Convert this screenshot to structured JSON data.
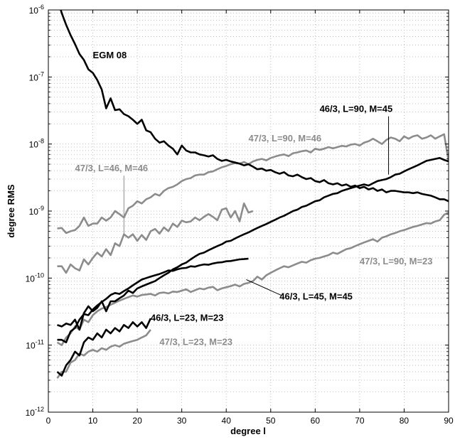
{
  "chart_data": {
    "type": "line",
    "xlabel": "degree l",
    "ylabel": "degree RMS",
    "xlim": [
      0,
      90
    ],
    "ylim": [
      1e-12,
      1e-06
    ],
    "yscale": "log",
    "grid": true,
    "x_ticks": [
      0,
      10,
      20,
      30,
      40,
      50,
      60,
      70,
      80,
      90
    ],
    "x_tick_labels": [
      "0",
      "10",
      "20",
      "30",
      "40",
      "50",
      "60",
      "70",
      "80",
      "90"
    ],
    "y_tick_exponents": [
      -12,
      -11,
      -10,
      -9,
      -8,
      -7,
      -6
    ],
    "y_tick_base": "10",
    "colors": {
      "black_series": "#000000",
      "gray_series": "#8c8c8c",
      "grid": "#b4b4b4"
    },
    "series": [
      {
        "name": "EGM 08",
        "color": "#000000",
        "x": [
          2,
          3,
          4,
          5,
          6,
          7,
          8,
          9,
          10,
          11,
          12,
          13,
          14,
          15,
          16,
          17,
          18,
          19,
          20,
          21,
          22,
          23,
          24,
          25,
          26,
          27,
          28,
          29,
          30,
          31,
          32,
          33,
          34,
          35,
          36,
          37,
          38,
          39,
          40,
          41,
          42,
          43,
          44,
          45,
          46,
          47,
          48,
          49,
          50,
          51,
          52,
          53,
          54,
          55,
          56,
          57,
          58,
          59,
          60,
          61,
          62,
          63,
          64,
          65,
          66,
          67,
          68,
          69,
          70,
          71,
          72,
          73,
          74,
          75,
          76,
          77,
          78,
          79,
          80,
          81,
          82,
          83,
          84,
          85,
          86,
          87,
          88,
          89,
          90
        ],
        "y": [
          1.5e-06,
          9e-07,
          6e-07,
          4.2e-07,
          3.1e-07,
          2.2e-07,
          1.8e-07,
          1.3e-07,
          1.15e-07,
          9e-08,
          6.5e-08,
          3.4e-08,
          4.8e-08,
          3.2e-08,
          3.3e-08,
          2.8e-08,
          2.6e-08,
          2.3e-08,
          2e-08,
          2.3e-08,
          1.6e-08,
          1.5e-08,
          1.2e-08,
          1.05e-08,
          1.1e-08,
          9.5e-09,
          8.5e-09,
          7e-09,
          9.5e-09,
          8e-09,
          7.5e-09,
          7.5e-09,
          7e-09,
          6.8e-09,
          6.5e-09,
          6.8e-09,
          6e-09,
          5.6e-09,
          5.8e-09,
          5.5e-09,
          5.3e-09,
          5.1e-09,
          4.8e-09,
          5e-09,
          4.6e-09,
          4.2e-09,
          4.3e-09,
          4e-09,
          4.1e-09,
          3.8e-09,
          3.6e-09,
          3.8e-09,
          3.4e-09,
          3.3e-09,
          3.5e-09,
          3.2e-09,
          3e-09,
          3.1e-09,
          2.8e-09,
          2.7e-09,
          2.9e-09,
          2.6e-09,
          2.5e-09,
          2.6e-09,
          2.4e-09,
          2.5e-09,
          2.3e-09,
          2.4e-09,
          2.2e-09,
          2.3e-09,
          2.1e-09,
          2.2e-09,
          2e-09,
          2.1e-09,
          1.9e-09,
          2e-09,
          2e-09,
          1.95e-09,
          1.9e-09,
          1.9e-09,
          1.85e-09,
          1.9e-09,
          1.8e-09,
          1.75e-09,
          1.7e-09,
          1.6e-09,
          1.5e-09,
          1.5e-09,
          1.4e-09
        ]
      },
      {
        "name": "46/3, L=90, M=45",
        "color": "#000000",
        "x": [
          2,
          3,
          4,
          5,
          6,
          7,
          8,
          9,
          10,
          11,
          12,
          13,
          14,
          15,
          16,
          17,
          18,
          19,
          20,
          21,
          22,
          23,
          24,
          25,
          26,
          27,
          28,
          29,
          30,
          31,
          32,
          33,
          34,
          35,
          36,
          37,
          38,
          39,
          40,
          41,
          42,
          43,
          44,
          45,
          46,
          47,
          48,
          49,
          50,
          51,
          52,
          53,
          54,
          55,
          56,
          57,
          58,
          59,
          60,
          61,
          62,
          63,
          64,
          65,
          66,
          67,
          68,
          69,
          70,
          71,
          72,
          73,
          74,
          75,
          76,
          77,
          78,
          79,
          80,
          81,
          82,
          83,
          84,
          85,
          86,
          87,
          88,
          89,
          90
        ],
        "y": [
          2e-11,
          1.9e-11,
          2.1e-11,
          2e-11,
          2.4e-11,
          1.7e-11,
          3e-11,
          3.8e-11,
          3.2e-11,
          3.6e-11,
          4.5e-11,
          3.2e-11,
          4.5e-11,
          4.5e-11,
          5e-11,
          5.5e-11,
          6.5e-11,
          6e-11,
          7e-11,
          7.5e-11,
          8e-11,
          8.5e-11,
          9e-11,
          1e-10,
          1.1e-10,
          1.2e-10,
          1.35e-10,
          1.45e-10,
          1.6e-10,
          1.7e-10,
          1.9e-10,
          2.1e-10,
          2.3e-10,
          2.4e-10,
          2.6e-10,
          2.8e-10,
          3e-10,
          3.2e-10,
          3.5e-10,
          3.6e-10,
          3.9e-10,
          4.2e-10,
          4.5e-10,
          4.8e-10,
          5.2e-10,
          5.6e-10,
          6e-10,
          6.4e-10,
          6.9e-10,
          7.4e-10,
          8e-10,
          8.5e-10,
          9.2e-10,
          1e-09,
          1.05e-09,
          1.15e-09,
          1.2e-09,
          1.3e-09,
          1.4e-09,
          1.45e-09,
          1.6e-09,
          1.7e-09,
          1.8e-09,
          1.85e-09,
          2e-09,
          2.1e-09,
          2.2e-09,
          2.3e-09,
          2.4e-09,
          2.5e-09,
          2.4e-09,
          2.6e-09,
          2.8e-09,
          2.9e-09,
          3e-09,
          3.2e-09,
          3.5e-09,
          3.6e-09,
          3.9e-09,
          4.2e-09,
          4.5e-09,
          4.8e-09,
          5.2e-09,
          5.6e-09,
          5.8e-09,
          6e-09,
          6.2e-09,
          5.8e-09,
          5.5e-09
        ]
      },
      {
        "name": "47/3, L=90, M=46",
        "color": "#8c8c8c",
        "x": [
          2,
          3,
          4,
          5,
          6,
          7,
          8,
          9,
          10,
          11,
          12,
          13,
          14,
          15,
          16,
          17,
          18,
          19,
          20,
          21,
          22,
          23,
          24,
          25,
          26,
          27,
          28,
          29,
          30,
          31,
          32,
          33,
          34,
          35,
          36,
          37,
          38,
          39,
          40,
          41,
          42,
          43,
          44,
          45,
          46,
          47,
          48,
          49,
          50,
          51,
          52,
          53,
          54,
          55,
          56,
          57,
          58,
          59,
          60,
          61,
          62,
          63,
          64,
          65,
          66,
          67,
          68,
          69,
          70,
          71,
          72,
          73,
          74,
          75,
          76,
          77,
          78,
          79,
          80,
          81,
          82,
          83,
          84,
          85,
          86,
          87,
          88,
          89,
          90
        ],
        "y": [
          5.5e-10,
          5.6e-10,
          4.7e-10,
          5e-10,
          5.2e-10,
          6e-10,
          8e-10,
          6e-10,
          6.5e-10,
          6.5e-10,
          8e-10,
          7.2e-10,
          8e-10,
          1e-09,
          9e-10,
          8e-10,
          1.1e-09,
          1.2e-09,
          1.4e-09,
          1.3e-09,
          1.5e-09,
          1.6e-09,
          1.8e-09,
          1.7e-09,
          2e-09,
          2.2e-09,
          2.3e-09,
          2.5e-09,
          2.8e-09,
          3e-09,
          3.1e-09,
          3.4e-09,
          3.5e-09,
          3.5e-09,
          3.8e-09,
          3.9e-09,
          4.2e-09,
          4.5e-09,
          4.7e-09,
          5e-09,
          5.2e-09,
          5.1e-09,
          5.4e-09,
          5e-09,
          5.5e-09,
          5.8e-09,
          6e-09,
          5.7e-09,
          6.2e-09,
          6.5e-09,
          6.8e-09,
          7e-09,
          6.6e-09,
          7.3e-09,
          7.5e-09,
          7.8e-09,
          8e-09,
          7.5e-09,
          8.5e-09,
          8.2e-09,
          8.5e-09,
          9e-09,
          8.6e-09,
          9e-09,
          9.4e-09,
          9.2e-09,
          9.8e-09,
          1e-08,
          9.5e-09,
          1.05e-08,
          1.1e-08,
          1.2e-08,
          1.1e-08,
          1e-08,
          1.15e-08,
          1.25e-08,
          1.2e-08,
          1.1e-08,
          1.3e-08,
          1.2e-08,
          1.3e-08,
          1.35e-08,
          1.2e-08,
          1.25e-08,
          1.35e-08,
          1.2e-08,
          1.3e-08,
          1.4e-08,
          5.5e-09
        ]
      },
      {
        "name": "47/3, L=46, M=46",
        "color": "#8c8c8c",
        "x": [
          2,
          3,
          4,
          5,
          6,
          7,
          8,
          9,
          10,
          11,
          12,
          13,
          14,
          15,
          16,
          17,
          18,
          19,
          20,
          21,
          22,
          23,
          24,
          25,
          26,
          27,
          28,
          29,
          30,
          31,
          32,
          33,
          34,
          35,
          36,
          37,
          38,
          39,
          40,
          41,
          42,
          43,
          44,
          45,
          46
        ],
        "y": [
          1.5e-10,
          1.5e-10,
          1.2e-10,
          1.6e-10,
          1.4e-10,
          1.3e-10,
          1.9e-10,
          1.6e-10,
          2e-10,
          2.4e-10,
          2.1e-10,
          2.7e-10,
          2.2e-10,
          3.3e-10,
          3e-10,
          4.5e-10,
          4e-10,
          4.5e-10,
          3.6e-10,
          4.4e-10,
          3.7e-10,
          5e-10,
          5.4e-10,
          4.6e-10,
          5.7e-10,
          5e-10,
          6.5e-10,
          5.8e-10,
          7.2e-10,
          6.8e-10,
          7e-10,
          8e-10,
          7.3e-10,
          8.2e-10,
          9e-10,
          8.2e-10,
          7.3e-10,
          1.05e-09,
          1.1e-09,
          8e-10,
          1e-09,
          7e-10,
          1.3e-09,
          9.5e-10,
          1e-09
        ]
      },
      {
        "name": "47/3, L=90, M=23",
        "color": "#8c8c8c",
        "x": [
          2,
          3,
          4,
          5,
          6,
          7,
          8,
          9,
          10,
          11,
          12,
          13,
          14,
          15,
          16,
          17,
          18,
          19,
          20,
          21,
          22,
          23,
          24,
          25,
          26,
          27,
          28,
          29,
          30,
          31,
          32,
          33,
          34,
          35,
          36,
          37,
          38,
          39,
          40,
          41,
          42,
          43,
          44,
          45,
          46,
          47,
          48,
          49,
          50,
          51,
          52,
          53,
          54,
          55,
          56,
          57,
          58,
          59,
          60,
          61,
          62,
          63,
          64,
          65,
          66,
          67,
          68,
          69,
          70,
          71,
          72,
          73,
          74,
          75,
          76,
          77,
          78,
          79,
          80,
          81,
          82,
          83,
          84,
          85,
          86,
          87,
          88,
          89,
          90
        ],
        "y": [
          1.1e-11,
          1e-11,
          1.3e-11,
          1.5e-11,
          1.9e-11,
          1.7e-11,
          2.4e-11,
          2.2e-11,
          2.8e-11,
          3.2e-11,
          3.5e-11,
          3.7e-11,
          4e-11,
          4.3e-11,
          4.6e-11,
          4.9e-11,
          5.2e-11,
          5.5e-11,
          5.3e-11,
          5.6e-11,
          5.7e-11,
          5.8e-11,
          5.5e-11,
          6e-11,
          6.1e-11,
          5.9e-11,
          6.3e-11,
          6.2e-11,
          6.5e-11,
          6.8e-11,
          6.2e-11,
          6.6e-11,
          7e-11,
          6.8e-11,
          7.2e-11,
          7.4e-11,
          6.6e-11,
          7e-11,
          7.3e-11,
          7.6e-11,
          8e-11,
          7.5e-11,
          8.2e-11,
          8.5e-11,
          9e-11,
          1.05e-10,
          9.5e-11,
          1.1e-10,
          1.2e-10,
          1.3e-10,
          1.4e-10,
          1.5e-10,
          1.45e-10,
          1.55e-10,
          1.65e-10,
          1.75e-10,
          1.7e-10,
          1.85e-10,
          1.95e-10,
          2e-10,
          2.1e-10,
          2.2e-10,
          2.4e-10,
          2.3e-10,
          2.5e-10,
          2.7e-10,
          2.8e-10,
          3e-10,
          3.2e-10,
          3.4e-10,
          3.6e-10,
          3.8e-10,
          3.5e-10,
          4e-10,
          4.2e-10,
          4.5e-10,
          4.7e-10,
          5e-10,
          5.2e-10,
          5.5e-10,
          5.8e-10,
          6e-10,
          6.3e-10,
          6.6e-10,
          6.5e-10,
          7e-10,
          7.3e-10,
          8.8e-10,
          9.5e-10
        ]
      },
      {
        "name": "46/3, L=45, M=45",
        "color": "#000000",
        "x": [
          2,
          3,
          4,
          5,
          6,
          7,
          8,
          9,
          10,
          11,
          12,
          13,
          14,
          15,
          16,
          17,
          18,
          19,
          20,
          21,
          22,
          23,
          24,
          25,
          26,
          27,
          28,
          29,
          30,
          31,
          32,
          33,
          34,
          35,
          36,
          37,
          38,
          39,
          40,
          41,
          42,
          43,
          44,
          45
        ],
        "y": [
          1.2e-11,
          1.2e-11,
          1.1e-11,
          1.6e-11,
          1.8e-11,
          2.4e-11,
          2.9e-11,
          2.8e-11,
          3.4e-11,
          3.9e-11,
          4.4e-11,
          4.9e-11,
          5.6e-11,
          6e-11,
          5.8e-11,
          6.4e-11,
          7e-11,
          7.8e-11,
          8.6e-11,
          9.5e-11,
          1e-10,
          1.05e-10,
          1.1e-10,
          1.15e-10,
          1.22e-10,
          1.3e-10,
          1.28e-10,
          1.35e-10,
          1.4e-10,
          1.42e-10,
          1.5e-10,
          1.48e-10,
          1.55e-10,
          1.6e-10,
          1.58e-10,
          1.65e-10,
          1.7e-10,
          1.72e-10,
          1.78e-10,
          1.8e-10,
          1.85e-10,
          1.9e-10,
          1.92e-10,
          1.95e-10
        ]
      },
      {
        "name": "46/3, L=23, M=23",
        "color": "#000000",
        "x": [
          2,
          3,
          4,
          5,
          6,
          7,
          8,
          9,
          10,
          11,
          12,
          13,
          14,
          15,
          16,
          17,
          18,
          19,
          20,
          21,
          22,
          23
        ],
        "y": [
          4e-12,
          3.5e-12,
          5e-12,
          6e-12,
          8e-12,
          7e-12,
          1.1e-11,
          1.3e-11,
          1.2e-11,
          1.5e-11,
          1.3e-11,
          1.7e-11,
          1.5e-11,
          1.8e-11,
          1.6e-11,
          2e-11,
          1.8e-11,
          2.2e-11,
          1.9e-11,
          2.2e-11,
          1.8e-11,
          2.5e-11
        ]
      },
      {
        "name": "47/3, L=23, M=23",
        "color": "#8c8c8c",
        "x": [
          2,
          3,
          4,
          5,
          6,
          7,
          8,
          9,
          10,
          11,
          12,
          13,
          14,
          15,
          16,
          17,
          18,
          19,
          20,
          21,
          22,
          23
        ],
        "y": [
          3.2e-12,
          4e-12,
          4e-12,
          5.5e-12,
          6e-12,
          7.5e-12,
          7e-12,
          8e-12,
          8.5e-12,
          8e-12,
          9e-12,
          8.5e-12,
          9.5e-12,
          1e-11,
          9.5e-12,
          1.05e-11,
          1.1e-11,
          1.15e-11,
          1.2e-11,
          1.3e-11,
          1.4e-11,
          1.7e-11
        ]
      }
    ],
    "annotations": [
      {
        "text": "EGM 08",
        "color": "#000000",
        "x": 10,
        "y": 1.9e-07,
        "anchor": "start"
      },
      {
        "text": "46/3, L=90, M=45",
        "color": "#000000",
        "x": 61,
        "y": 3e-08,
        "anchor": "start",
        "pointer_to": [
          76.5,
          3.5e-09
        ]
      },
      {
        "text": "47/3, L=90, M=46",
        "color": "#8c8c8c",
        "x": 45,
        "y": 1.1e-08,
        "anchor": "start"
      },
      {
        "text": "47/3, L=46, M=46",
        "color": "#8c8c8c",
        "x": 6,
        "y": 3.9e-09,
        "anchor": "start",
        "pointer_to": [
          17,
          4.2e-10
        ]
      },
      {
        "text": "47/3, L=90, M=23",
        "color": "#8c8c8c",
        "x": 70,
        "y": 1.6e-10,
        "anchor": "start"
      },
      {
        "text": "46/3, L=45, M=45",
        "color": "#000000",
        "x": 52,
        "y": 4.8e-11,
        "anchor": "start",
        "pointer_to": [
          44.5,
          9.5e-11
        ]
      },
      {
        "text": "46/3, L=23, M=23",
        "color": "#000000",
        "x": 23,
        "y": 2.3e-11,
        "anchor": "start"
      },
      {
        "text": "47/3, L=23, M=23",
        "color": "#8c8c8c",
        "x": 25,
        "y": 1e-11,
        "anchor": "start"
      }
    ]
  }
}
